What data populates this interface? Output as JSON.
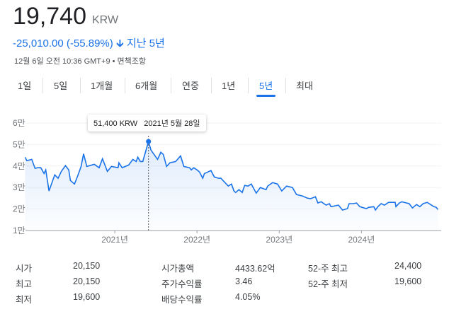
{
  "header": {
    "price": "19,740",
    "currency": "KRW",
    "change": "-25,010.00 (-55.89%)",
    "change_arrow": "arrow-down-icon",
    "period": "지난 5년",
    "timestamp": "12월 6일 오전 10:36 GMT+9",
    "disclaimer": "면책조항"
  },
  "tabs": [
    {
      "label": "1일"
    },
    {
      "label": "5일"
    },
    {
      "label": "1개월"
    },
    {
      "label": "6개월"
    },
    {
      "label": "연중"
    },
    {
      "label": "1년"
    },
    {
      "label": "5년",
      "selected": true
    },
    {
      "label": "최대"
    }
  ],
  "tooltip": {
    "value": "51,400 KRW",
    "date": "2021년 5월 28일"
  },
  "colors": {
    "accent": "#1a73e8",
    "line": "#1a73e8"
  },
  "chart_data": {
    "type": "area",
    "xlabel": "",
    "ylabel": "",
    "xlim": [
      2019.914,
      2024.97
    ],
    "ylim": [
      10000,
      60000
    ],
    "y_ticks": [
      {
        "v": 60000,
        "label": "6만"
      },
      {
        "v": 50000,
        "label": "5만"
      },
      {
        "v": 40000,
        "label": "4만"
      },
      {
        "v": 30000,
        "label": "3만"
      },
      {
        "v": 20000,
        "label": "2만"
      },
      {
        "v": 10000,
        "label": "1만"
      }
    ],
    "x_ticks": [
      {
        "v": 2021,
        "label": "2021년"
      },
      {
        "v": 2022,
        "label": "2022년"
      },
      {
        "v": 2023,
        "label": "2023년"
      },
      {
        "v": 2024,
        "label": "2024년"
      }
    ],
    "highlight": {
      "x": 2021.41,
      "y": 51400
    },
    "points": [
      [
        2019.91,
        44100
      ],
      [
        2019.93,
        42500
      ],
      [
        2019.99,
        43100
      ],
      [
        2020.03,
        38900
      ],
      [
        2020.06,
        39200
      ],
      [
        2020.1,
        39200
      ],
      [
        2020.14,
        36500
      ],
      [
        2020.16,
        38200
      ],
      [
        2020.2,
        28400
      ],
      [
        2020.27,
        35900
      ],
      [
        2020.31,
        34300
      ],
      [
        2020.35,
        37500
      ],
      [
        2020.4,
        40200
      ],
      [
        2020.44,
        38200
      ],
      [
        2020.46,
        33300
      ],
      [
        2020.51,
        31600
      ],
      [
        2020.55,
        35500
      ],
      [
        2020.59,
        39800
      ],
      [
        2020.62,
        45700
      ],
      [
        2020.66,
        39800
      ],
      [
        2020.75,
        40800
      ],
      [
        2020.81,
        39200
      ],
      [
        2020.85,
        43400
      ],
      [
        2020.91,
        37500
      ],
      [
        2020.96,
        39800
      ],
      [
        2021.04,
        39200
      ],
      [
        2021.05,
        41500
      ],
      [
        2021.09,
        39200
      ],
      [
        2021.17,
        40500
      ],
      [
        2021.22,
        43100
      ],
      [
        2021.26,
        42100
      ],
      [
        2021.28,
        44100
      ],
      [
        2021.31,
        42100
      ],
      [
        2021.34,
        42100
      ],
      [
        2021.41,
        51400
      ],
      [
        2021.44,
        47400
      ],
      [
        2021.52,
        43100
      ],
      [
        2021.56,
        46400
      ],
      [
        2021.59,
        45400
      ],
      [
        2021.63,
        39800
      ],
      [
        2021.67,
        41500
      ],
      [
        2021.74,
        42100
      ],
      [
        2021.8,
        44700
      ],
      [
        2021.84,
        39800
      ],
      [
        2021.91,
        39200
      ],
      [
        2021.93,
        38200
      ],
      [
        2021.96,
        39200
      ],
      [
        2022.0,
        38200
      ],
      [
        2022.03,
        37200
      ],
      [
        2022.07,
        34300
      ],
      [
        2022.09,
        36500
      ],
      [
        2022.17,
        37900
      ],
      [
        2022.21,
        34900
      ],
      [
        2022.26,
        34300
      ],
      [
        2022.29,
        34300
      ],
      [
        2022.38,
        30700
      ],
      [
        2022.42,
        31600
      ],
      [
        2022.45,
        28400
      ],
      [
        2022.47,
        27700
      ],
      [
        2022.51,
        29000
      ],
      [
        2022.55,
        27700
      ],
      [
        2022.58,
        31000
      ],
      [
        2022.62,
        30700
      ],
      [
        2022.66,
        31600
      ],
      [
        2022.72,
        27400
      ],
      [
        2022.77,
        30000
      ],
      [
        2022.84,
        29000
      ],
      [
        2022.86,
        30700
      ],
      [
        2022.92,
        32300
      ],
      [
        2022.98,
        31600
      ],
      [
        2023.03,
        28400
      ],
      [
        2023.09,
        30700
      ],
      [
        2023.16,
        30000
      ],
      [
        2023.21,
        26700
      ],
      [
        2023.28,
        26100
      ],
      [
        2023.34,
        25100
      ],
      [
        2023.38,
        24800
      ],
      [
        2023.44,
        25700
      ],
      [
        2023.47,
        22800
      ],
      [
        2023.51,
        23400
      ],
      [
        2023.57,
        21800
      ],
      [
        2023.61,
        22500
      ],
      [
        2023.63,
        21100
      ],
      [
        2023.72,
        21800
      ],
      [
        2023.77,
        19500
      ],
      [
        2023.83,
        20200
      ],
      [
        2023.85,
        22500
      ],
      [
        2023.9,
        22500
      ],
      [
        2023.94,
        22800
      ],
      [
        2023.98,
        21100
      ],
      [
        2024.06,
        20200
      ],
      [
        2024.09,
        20800
      ],
      [
        2024.15,
        21100
      ],
      [
        2024.17,
        19500
      ],
      [
        2024.2,
        21100
      ],
      [
        2024.24,
        22500
      ],
      [
        2024.28,
        21800
      ],
      [
        2024.33,
        23100
      ],
      [
        2024.41,
        23100
      ],
      [
        2024.42,
        21100
      ],
      [
        2024.46,
        22800
      ],
      [
        2024.49,
        23400
      ],
      [
        2024.58,
        22500
      ],
      [
        2024.62,
        20500
      ],
      [
        2024.67,
        22100
      ],
      [
        2024.71,
        21100
      ],
      [
        2024.75,
        22500
      ],
      [
        2024.8,
        23100
      ],
      [
        2024.84,
        22100
      ],
      [
        2024.88,
        21100
      ],
      [
        2024.91,
        20800
      ],
      [
        2024.93,
        19740
      ]
    ]
  },
  "stats": [
    {
      "label": "시가",
      "value": "20,150"
    },
    {
      "label": "최고",
      "value": "20,150"
    },
    {
      "label": "최저",
      "value": "19,600"
    },
    {
      "label": "시가총액",
      "value": "4433.62억"
    },
    {
      "label": "주가수익률",
      "value": "3.46"
    },
    {
      "label": "배당수익률",
      "value": "4.05%"
    },
    {
      "label": "52-주 최고",
      "value": "24,400"
    },
    {
      "label": "52-주 최저",
      "value": "19,600"
    }
  ]
}
